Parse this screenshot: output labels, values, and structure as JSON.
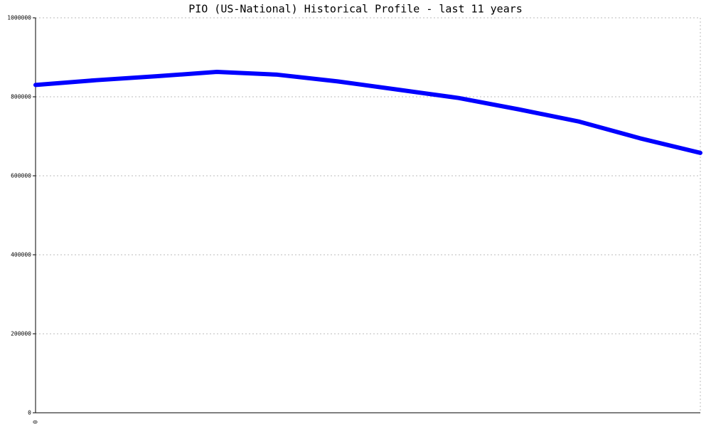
{
  "chart_data": {
    "type": "line",
    "title": "PIO (US-National) Historical Profile - last 11 years",
    "categories": [
      "0",
      null,
      null,
      null,
      null,
      null,
      null,
      null,
      null,
      null,
      null,
      null
    ],
    "series": [
      {
        "color": "#0000ff",
        "values": [
          830000,
          842000,
          852000,
          863000,
          856000,
          839000,
          818000,
          797000,
          768000,
          737000,
          695000,
          658000
        ]
      }
    ],
    "ylim": [
      0,
      1000000
    ],
    "yticks": [
      0,
      200000,
      400000,
      600000,
      800000,
      1000000
    ],
    "grid": true
  }
}
